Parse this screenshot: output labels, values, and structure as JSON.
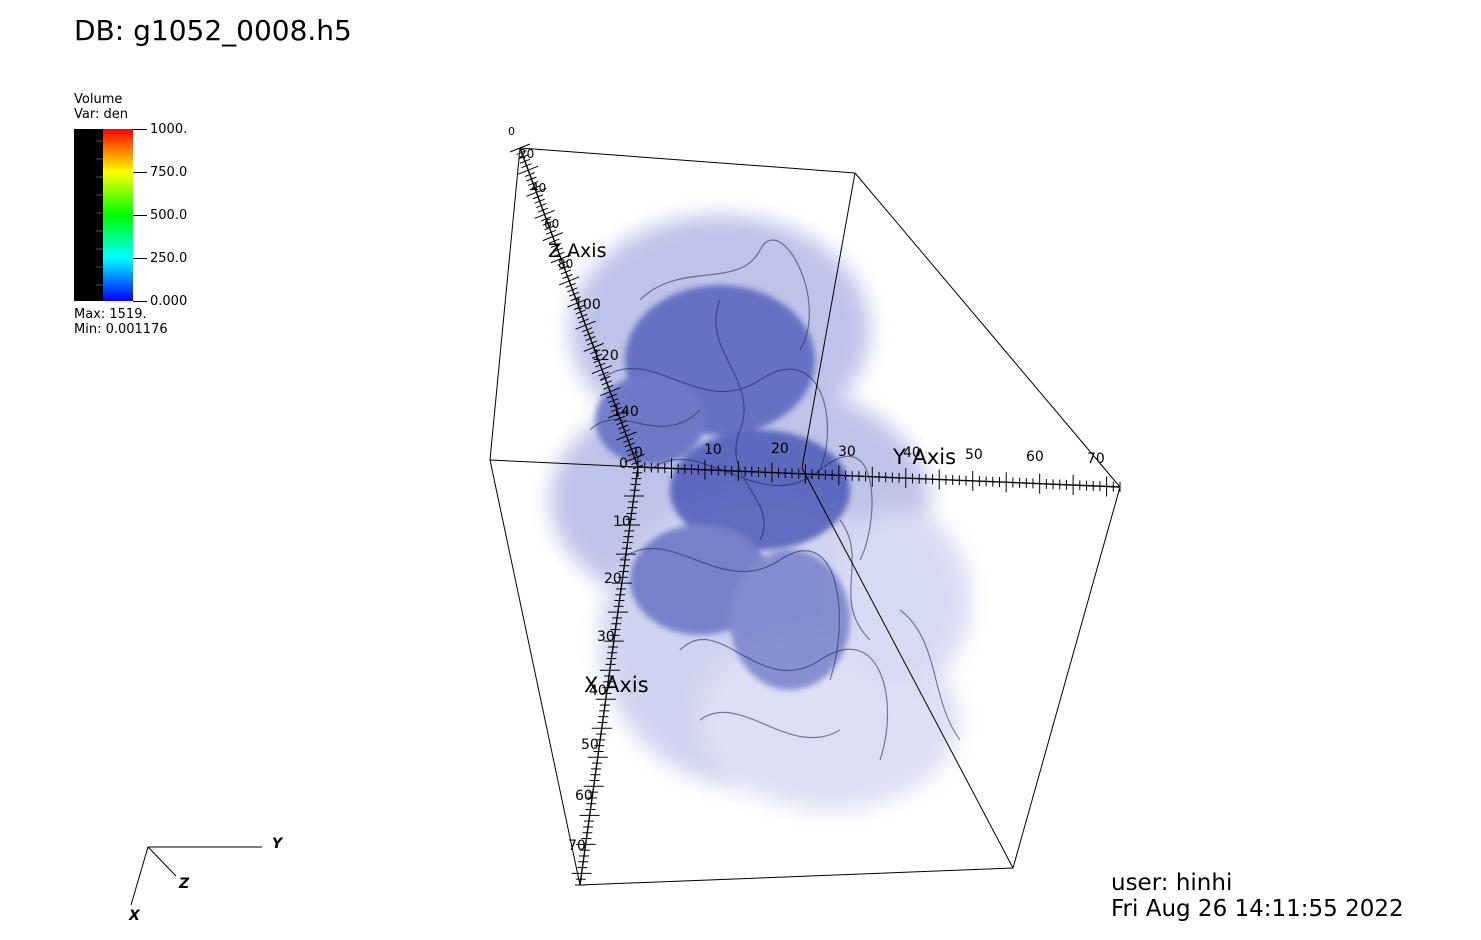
{
  "database": {
    "label": "DB: g1052_0008.h5"
  },
  "legend": {
    "plot_type": "Volume",
    "variable": "Var: den",
    "ticks": [
      "1000.",
      "750.0",
      "500.0",
      "250.0",
      "0.000"
    ],
    "max": "Max:  1519.",
    "min": "Min:  0.001176",
    "colors": {
      "top": "#ff0000",
      "upper": "#ffff00",
      "middle": "#00ff00",
      "lower": "#00ffff",
      "bottom": "#0000ff",
      "opacity_bg": "#000000"
    }
  },
  "axes": {
    "x": {
      "title": "X Axis",
      "ticks": [
        "0",
        "10",
        "20",
        "30",
        "40",
        "50",
        "60",
        "70"
      ]
    },
    "y": {
      "title": "Y Axis",
      "ticks": [
        "0",
        "10",
        "20",
        "30",
        "40",
        "50",
        "60",
        "70"
      ]
    },
    "z": {
      "title": "Z Axis",
      "ticks": [
        "0",
        "20",
        "40",
        "60",
        "80",
        "100",
        "120",
        "140"
      ]
    }
  },
  "triad": {
    "x": "X",
    "y": "Y",
    "z": "Z"
  },
  "user": {
    "name": "user: hinhi",
    "timestamp": "Fri Aug 26 14:11:55 2022"
  },
  "rendering": {
    "volume_color": "#2a3aa8"
  }
}
